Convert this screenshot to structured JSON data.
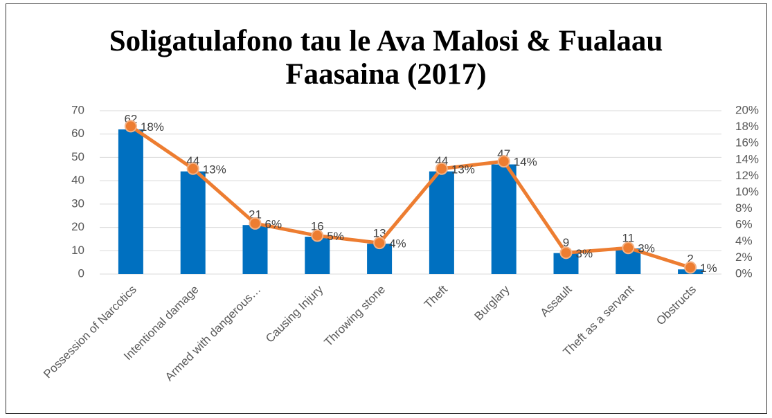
{
  "chart_data": {
    "type": "combo",
    "title": "Soligatulafono tau le Ava Malosi & Fualaau Faasaina (2017)",
    "categories": [
      "Possession of Narcotics",
      "Intentional damage",
      "Armed with dangerous…",
      "Causing Injury",
      "Throwing stone",
      "Theft",
      "Burglary",
      "Assault",
      "Theft as a servant",
      "Obstructs"
    ],
    "series": [
      {
        "type": "bar",
        "color": "#0070c0",
        "values": [
          62,
          44,
          21,
          16,
          13,
          44,
          47,
          9,
          11,
          2
        ]
      },
      {
        "type": "line",
        "axis": "y2",
        "color": "#ed7d31",
        "values": [
          18.1,
          12.9,
          6.2,
          4.7,
          3.8,
          12.9,
          13.8,
          2.6,
          3.2,
          0.8
        ],
        "value_labels": [
          "18%",
          "13%",
          "6%",
          "5%",
          "4%",
          "13%",
          "14%",
          "3%",
          "3%",
          "1%"
        ]
      }
    ],
    "ylim": [
      0,
      70
    ],
    "yticks": [
      0,
      10,
      20,
      30,
      40,
      50,
      60,
      70
    ],
    "y2lim": [
      0,
      20
    ],
    "y2ticks": [
      {
        "value": 0,
        "label": "0%"
      },
      {
        "value": 2,
        "label": "2%"
      },
      {
        "value": 4,
        "label": "4%"
      },
      {
        "value": 6,
        "label": "6%"
      },
      {
        "value": 8,
        "label": "8%"
      },
      {
        "value": 10,
        "label": "10%"
      },
      {
        "value": 12,
        "label": "12%"
      },
      {
        "value": 14,
        "label": "14%"
      },
      {
        "value": 16,
        "label": "16%"
      },
      {
        "value": 18,
        "label": "18%"
      },
      {
        "value": 20,
        "label": "20%"
      }
    ],
    "grid": true
  }
}
